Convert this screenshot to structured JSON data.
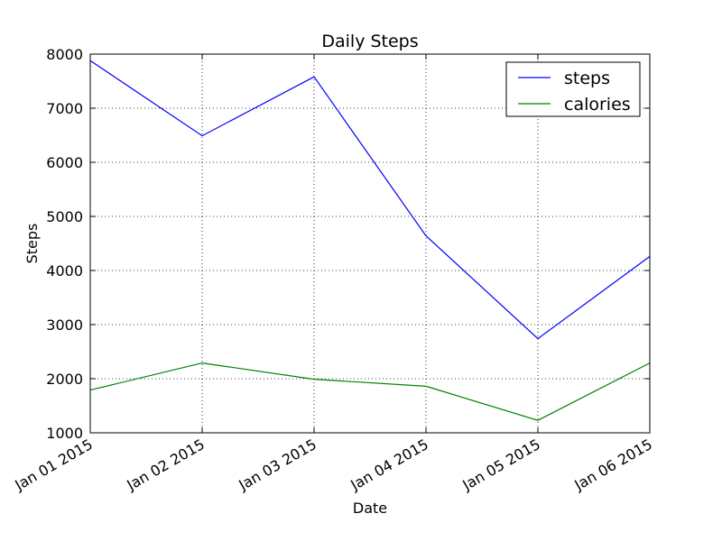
{
  "chart_data": {
    "type": "line",
    "title": "Daily Steps",
    "xlabel": "Date",
    "ylabel": "Steps",
    "x": [
      "Jan 01 2015",
      "Jan 02 2015",
      "Jan 03 2015",
      "Jan 04 2015",
      "Jan 05 2015",
      "Jan 06 2015"
    ],
    "ylim": [
      1000,
      8000
    ],
    "yticks": [
      1000,
      2000,
      3000,
      4000,
      5000,
      6000,
      7000,
      8000
    ],
    "grid": true,
    "legend_position": "top-right",
    "series": [
      {
        "name": "steps",
        "color": "#0000ff",
        "values": [
          7880,
          6490,
          7580,
          4640,
          2740,
          4260
        ]
      },
      {
        "name": "calories",
        "color": "#008000",
        "values": [
          1790,
          2290,
          1990,
          1860,
          1230,
          2290
        ]
      }
    ]
  }
}
